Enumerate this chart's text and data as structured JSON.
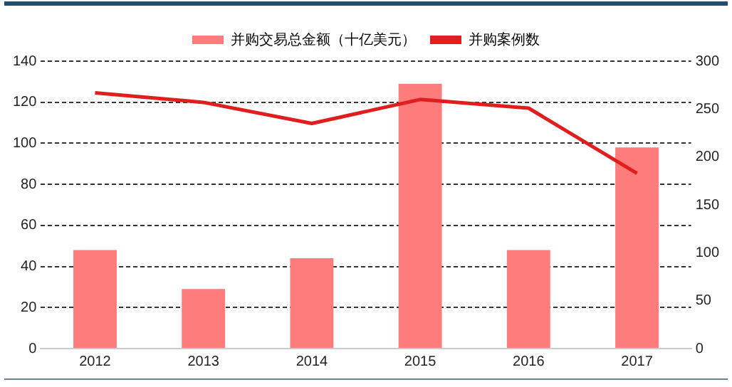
{
  "chart_data": {
    "type": "bar",
    "categories": [
      "2012",
      "2013",
      "2014",
      "2015",
      "2016",
      "2017"
    ],
    "series": [
      {
        "name": "并购交易总金额（十亿美元）",
        "color": "#ff7c7c",
        "values": [
          48,
          29,
          44,
          129,
          48,
          98
        ]
      },
      {
        "name": "并购案例数",
        "type": "line",
        "axis": "y2",
        "color": "#e01e1e",
        "values": [
          267,
          257,
          235,
          260,
          251,
          183
        ]
      }
    ],
    "ylim": [
      0,
      140
    ],
    "yticks": [
      0,
      20,
      40,
      60,
      80,
      100,
      120,
      140
    ],
    "y2lim": [
      0,
      300
    ],
    "y2ticks": [
      0,
      50,
      100,
      150,
      200,
      250,
      300
    ],
    "grid": "y",
    "legend": "top",
    "marker": "none",
    "line_style": "solid"
  }
}
